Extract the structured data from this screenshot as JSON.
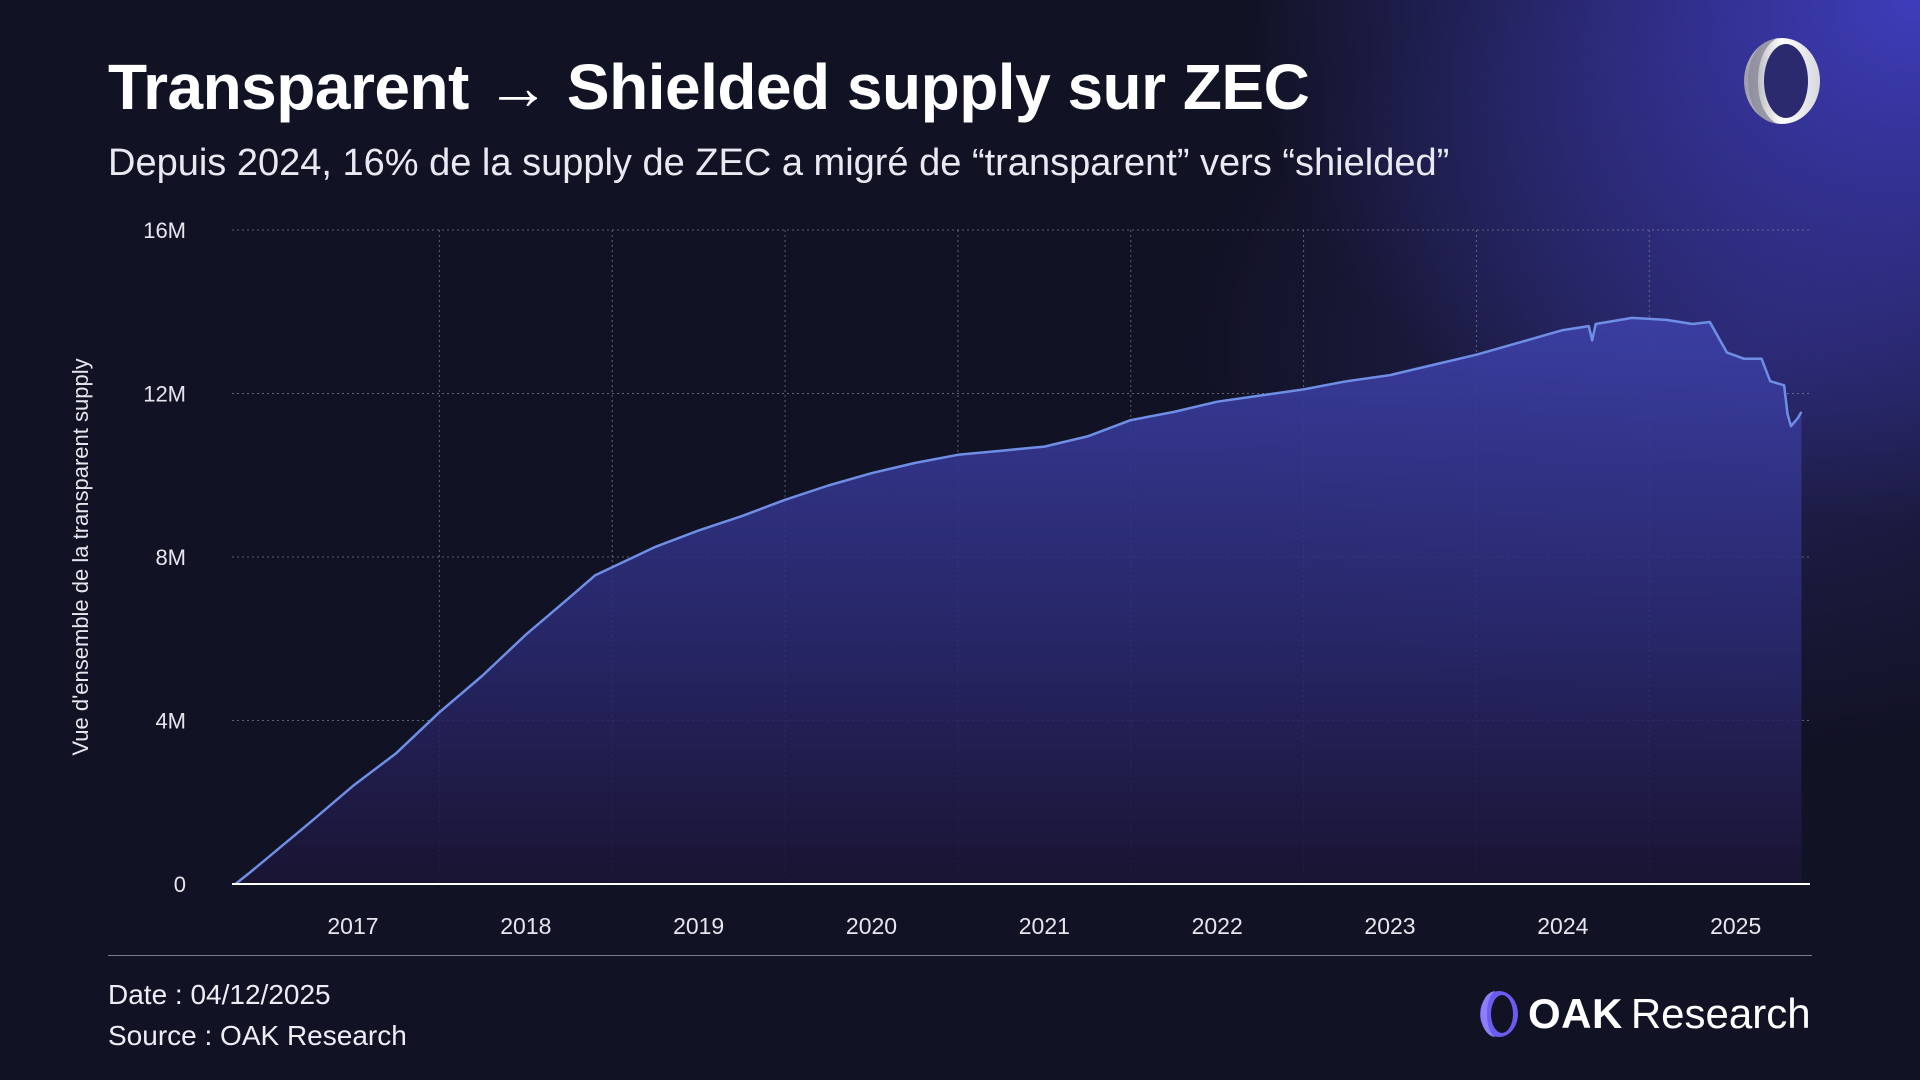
{
  "header": {
    "title": "Transparent → Shielded supply sur ZEC",
    "subtitle": "Depuis 2024, 16% de la supply de ZEC a migré de “transparent” vers “shielded”"
  },
  "footer": {
    "date": "Date : 04/12/2025",
    "source": "Source : OAK Research",
    "brand_bold": "OAK",
    "brand_regular": "Research"
  },
  "colors": {
    "background": "#121225",
    "accent_glow": "#3f3dbb",
    "line": "#6f8ee6",
    "area_top": "#3b3fa3",
    "area_bottom": "#1a1433",
    "gridline": "#7a7a90"
  },
  "icons": {
    "top_logo": "oak-ring-logo-icon",
    "brand_logo": "oak-logo-icon"
  },
  "chart_data": {
    "type": "area",
    "ylabel": "Vue d'ensemble de la transparent supply",
    "xlabel": "",
    "ylim": [
      0,
      16000000
    ],
    "yticks": [
      {
        "value": 0,
        "label": "0"
      },
      {
        "value": 4000000,
        "label": "4M"
      },
      {
        "value": 8000000,
        "label": "8M"
      },
      {
        "value": 12000000,
        "label": "12M"
      },
      {
        "value": 16000000,
        "label": "16M"
      }
    ],
    "xlim": [
      2016.8,
      2025.93
    ],
    "xticks": [
      {
        "value": 2017.5,
        "label": "2017"
      },
      {
        "value": 2018.5,
        "label": "2018"
      },
      {
        "value": 2019.5,
        "label": "2019"
      },
      {
        "value": 2020.5,
        "label": "2020"
      },
      {
        "value": 2021.5,
        "label": "2021"
      },
      {
        "value": 2022.5,
        "label": "2022"
      },
      {
        "value": 2023.5,
        "label": "2023"
      },
      {
        "value": 2024.5,
        "label": "2024"
      },
      {
        "value": 2025.5,
        "label": "2025"
      }
    ],
    "grid": true,
    "series": [
      {
        "points": [
          [
            2016.82,
            0
          ],
          [
            2016.9,
            270000
          ],
          [
            2017.0,
            620000
          ],
          [
            2017.25,
            1500000
          ],
          [
            2017.5,
            2400000
          ],
          [
            2017.75,
            3200000
          ],
          [
            2018.0,
            4200000
          ],
          [
            2018.25,
            5100000
          ],
          [
            2018.5,
            6100000
          ],
          [
            2018.75,
            7000000
          ],
          [
            2018.9,
            7550000
          ],
          [
            2019.0,
            7750000
          ],
          [
            2019.25,
            8250000
          ],
          [
            2019.5,
            8650000
          ],
          [
            2019.75,
            9000000
          ],
          [
            2020.0,
            9400000
          ],
          [
            2020.25,
            9750000
          ],
          [
            2020.5,
            10050000
          ],
          [
            2020.75,
            10300000
          ],
          [
            2021.0,
            10500000
          ],
          [
            2021.25,
            10600000
          ],
          [
            2021.5,
            10700000
          ],
          [
            2021.75,
            10950000
          ],
          [
            2022.0,
            11350000
          ],
          [
            2022.25,
            11550000
          ],
          [
            2022.5,
            11800000
          ],
          [
            2022.75,
            11950000
          ],
          [
            2023.0,
            12100000
          ],
          [
            2023.25,
            12300000
          ],
          [
            2023.5,
            12450000
          ],
          [
            2023.75,
            12700000
          ],
          [
            2024.0,
            12950000
          ],
          [
            2024.25,
            13250000
          ],
          [
            2024.5,
            13550000
          ],
          [
            2024.65,
            13650000
          ],
          [
            2024.67,
            13300000
          ],
          [
            2024.69,
            13700000
          ],
          [
            2024.9,
            13850000
          ],
          [
            2025.1,
            13800000
          ],
          [
            2025.25,
            13700000
          ],
          [
            2025.35,
            13750000
          ],
          [
            2025.45,
            13000000
          ],
          [
            2025.55,
            12850000
          ],
          [
            2025.65,
            12850000
          ],
          [
            2025.7,
            12300000
          ],
          [
            2025.78,
            12200000
          ],
          [
            2025.8,
            11500000
          ],
          [
            2025.82,
            11200000
          ],
          [
            2025.86,
            11400000
          ],
          [
            2025.88,
            11550000
          ]
        ]
      }
    ]
  }
}
